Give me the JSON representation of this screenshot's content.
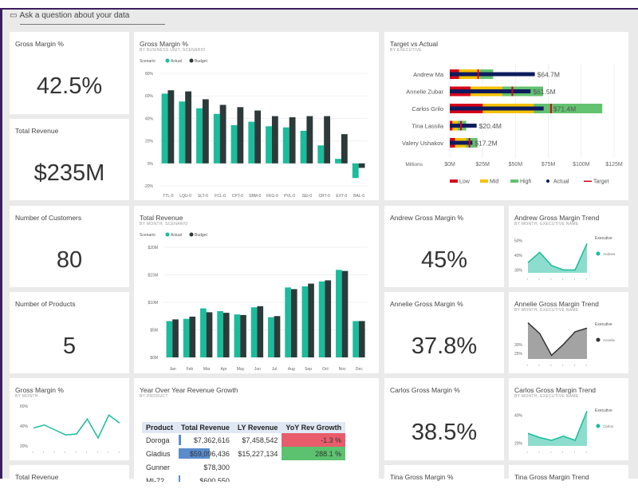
{
  "qa": {
    "icon": "chat-icon",
    "placeholder": "Ask a question about your data"
  },
  "colors": {
    "actual": "#1abc9c",
    "budget": "#2d3a3a",
    "low": "#d7001a",
    "mid": "#f5c100",
    "high": "#62c26f",
    "actual_bullet": "#0d1b5e",
    "target": "#d7001a",
    "negative": "#e95c6b",
    "positive": "#5cc26f",
    "databar": "#5b8ccc"
  },
  "kpis": {
    "gm": {
      "title": "Gross Margin %",
      "value": "42.5%"
    },
    "rev": {
      "title": "Total Revenue",
      "value": "$235M"
    },
    "cust": {
      "title": "Number of Customers",
      "value": "80"
    },
    "prod": {
      "title": "Number of Products",
      "value": "5"
    },
    "andrew": {
      "title": "Andrew Gross Margin %",
      "value": "45%"
    },
    "annelie": {
      "title": "Annelie Gross Margin %",
      "value": "37.8%"
    },
    "carlos": {
      "title": "Carlos Gross Margin %",
      "value": "38.5%"
    },
    "tina": {
      "title": "Tina Gross Margin %"
    },
    "rev2": {
      "title": "Total Revenue"
    }
  },
  "chart_data": [
    {
      "id": "gm_bar",
      "type": "bar",
      "title": "Gross Margin %",
      "subtitle": "BY BUSINESS UNIT, SCENARIO",
      "legend_title": "Scenario",
      "ylim": [
        -20,
        80
      ],
      "yticks": [
        "80%",
        "60%",
        "40%",
        "20%",
        "0%",
        "-20%"
      ],
      "ytick_values": [
        80,
        60,
        40,
        20,
        0,
        -20
      ],
      "categories": [
        "TTL-0",
        "LQU-0",
        "SLT-0",
        "FCL-0",
        "CPT-0",
        "SBM-0",
        "FKG-0",
        "PVL-0",
        "SEI-0",
        "CRT-0",
        "EXT-0",
        "BAL-0"
      ],
      "series": [
        {
          "name": "Actual",
          "values": [
            62,
            55,
            49,
            44,
            34,
            37,
            33,
            32,
            29,
            16,
            4,
            -13
          ]
        },
        {
          "name": "Budget",
          "values": [
            65,
            64,
            57,
            52,
            50,
            47,
            42,
            41,
            42,
            42,
            26,
            -4
          ]
        }
      ]
    },
    {
      "id": "rev_bar",
      "type": "bar",
      "title": "Total Revenue",
      "subtitle": "BY MONTH, SCENARIO",
      "legend_title": "Scenario",
      "ylim": [
        0,
        20
      ],
      "yticks": [
        "$20M",
        "$15M",
        "$10M",
        "$5M",
        "$0M"
      ],
      "ytick_values": [
        20,
        15,
        10,
        5,
        0
      ],
      "categories": [
        "Jan",
        "Feb",
        "Mar",
        "Apr",
        "May",
        "Jun",
        "Jul",
        "Aug",
        "Sep",
        "Oct",
        "Nov",
        "Dec"
      ],
      "series": [
        {
          "name": "Actual",
          "values": [
            6.6,
            7.0,
            8.9,
            8.4,
            7.8,
            9.1,
            7.3,
            12.7,
            12.9,
            13.8,
            15.9,
            6.6
          ]
        },
        {
          "name": "Budget",
          "values": [
            6.9,
            7.4,
            8.2,
            8.1,
            7.7,
            9.3,
            7.5,
            12.4,
            13.4,
            14.0,
            15.7,
            6.6
          ]
        }
      ]
    },
    {
      "id": "tva",
      "type": "bullet",
      "title": "Target vs Actual",
      "subtitle": "BY EXECUTIVE",
      "xlim": [
        0,
        125
      ],
      "axis_unit": "Millions",
      "xticks": [
        "$0M",
        "$25M",
        "$50M",
        "$75M",
        "$100M",
        "$125M"
      ],
      "xtick_values": [
        0,
        25,
        50,
        75,
        100,
        125
      ],
      "legend": [
        "Low",
        "Mid",
        "High",
        "Actual",
        "Target"
      ],
      "rows": [
        {
          "name": "Andrew Ma",
          "low": 7,
          "mid": 23,
          "high": 33,
          "actual": 64.7,
          "target": 21.6,
          "label": "$64.7M"
        },
        {
          "name": "Annelie Zubar",
          "low": 15.7,
          "mid": 40,
          "high": 71,
          "actual": 61.5,
          "target": 47.6,
          "label": "$61.5M"
        },
        {
          "name": "Carlos Grilo",
          "low": 25,
          "mid": 64,
          "high": 116,
          "actual": 71.4,
          "target": 77,
          "label": "$71.4M"
        },
        {
          "name": "Tina Lassila",
          "low": 2,
          "mid": 6,
          "high": 12.5,
          "actual": 20.4,
          "target": 8.5,
          "label": "$20.4M"
        },
        {
          "name": "Valery Ushakov",
          "low": 4,
          "mid": 12.5,
          "high": 21,
          "actual": 17.2,
          "target": 15,
          "label": "$17.2M"
        }
      ]
    },
    {
      "id": "gm_line",
      "type": "line",
      "title": "Gross Margin %",
      "subtitle": "BY MONTH",
      "ylim": [
        20,
        60
      ],
      "yticks": [
        "60%",
        "40%",
        "20%"
      ],
      "ytick_values": [
        60,
        40,
        20
      ],
      "values": [
        38,
        41,
        36,
        31,
        32,
        47,
        28,
        51,
        43
      ]
    },
    {
      "id": "andrew_trend",
      "type": "area",
      "title": "Andrew Gross Margin Trend",
      "subtitle": "BY MONTH, EXECUTIVE NAME",
      "legend_title": "Executive",
      "legend": "Andrew",
      "color": "#1abc9c",
      "ylim": [
        28,
        52
      ],
      "yticks": [
        "50%",
        "40%",
        "30%"
      ],
      "ytick_values": [
        50,
        40,
        30
      ],
      "values": [
        35,
        42,
        33,
        30,
        30,
        48
      ]
    },
    {
      "id": "annelie_trend",
      "type": "area",
      "title": "Annelie Gross Margin Trend",
      "subtitle": "BY MONTH, EXECUTIVE NAME",
      "legend_title": "Executive",
      "legend": "Annelie",
      "color": "#333333",
      "ylim": [
        22,
        44
      ],
      "yticks": [
        "30%",
        "25%"
      ],
      "ytick_values": [
        30,
        25
      ],
      "values": [
        42,
        36,
        24,
        30,
        37,
        39
      ]
    },
    {
      "id": "carlos_trend",
      "type": "area",
      "title": "Carlos Gross Margin Trend",
      "subtitle": "BY MONTH, EXECUTIVE NAME",
      "legend_title": "Executive",
      "legend": "Carlos",
      "color": "#1abc9c",
      "ylim": [
        18,
        46
      ],
      "yticks": [
        "40%",
        "20%"
      ],
      "ytick_values": [
        40,
        20
      ],
      "values": [
        27,
        24,
        22,
        25,
        22,
        43
      ]
    },
    {
      "id": "tina_trend",
      "type": "area",
      "title": "Tina Gross Margin Trend"
    }
  ],
  "yoy": {
    "title": "Year Over Year Revenue Growth",
    "subtitle": "BY PRODUCT",
    "headers": [
      "Product",
      "Total Revenue",
      "LY Revenue",
      "YoY Rev Growth"
    ],
    "rows": [
      {
        "product": "Doroga",
        "total": "$7,362,616",
        "ly": "$7,458,542",
        "growth": "-1.3 %",
        "bar": 0.04,
        "status": "neg"
      },
      {
        "product": "Gladius",
        "total": "$59,096,436",
        "ly": "$15,227,134",
        "growth": "288.1 %",
        "bar": 0.55,
        "status": "pos"
      },
      {
        "product": "Gunner",
        "total": "$78,300",
        "ly": "",
        "growth": "",
        "bar": 0,
        "status": ""
      },
      {
        "product": "MI-72",
        "total": "$600,550",
        "ly": "",
        "growth": "",
        "bar": 0.01,
        "status": ""
      }
    ]
  }
}
